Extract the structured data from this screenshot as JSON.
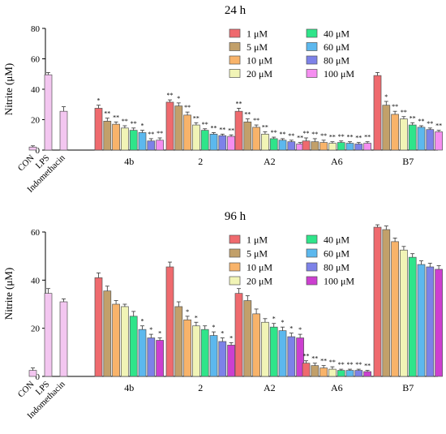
{
  "colors": {
    "CON": "#f3c6f0",
    "LPS": "#f3c6f0",
    "Indomethacin": "#f3c6f0",
    "1 μM": "#ef6a6e",
    "5 μM": "#c2a06a",
    "10 μM": "#f8b36a",
    "20 μM": "#f1f4b6",
    "40 μM": "#2fe58a",
    "60 μM": "#5cb8ee",
    "80 μM": "#7d82e8",
    "100 μM_a": "#f58ef0",
    "100 μM_b": "#cc3fd0"
  },
  "chart_data": [
    {
      "type": "bar",
      "title": "24 h",
      "ylabel": "Nitrite (μM)",
      "ylim": [
        0,
        80
      ],
      "yticks": [
        "0",
        "20",
        "40",
        "60",
        "80"
      ],
      "legend": {
        "placement": "top-right",
        "entries": [
          "1 μM",
          "5 μM",
          "10 μM",
          "20 μM",
          "40 μM",
          "60 μM",
          "80 μM",
          "100 μM"
        ],
        "colorKeys": [
          "1 μM",
          "5 μM",
          "10 μM",
          "20 μM",
          "40 μM",
          "60 μM",
          "80 μM",
          "100 μM_a"
        ]
      },
      "controls": [
        {
          "label": "CON",
          "value": 2,
          "err": 0.8,
          "colorKey": "CON"
        },
        {
          "label": "LPS",
          "value": 49.5,
          "err": 1.5,
          "colorKey": "LPS"
        },
        {
          "label": "Indomethacin",
          "value": 25.5,
          "err": 3,
          "colorKey": "Indomethacin"
        }
      ],
      "categories": [
        "4b",
        "2",
        "A2",
        "A6",
        "B7"
      ],
      "series": [
        {
          "name": "1 μM",
          "values": [
            27.5,
            31.5,
            25.5,
            6,
            49
          ],
          "err": [
            2,
            1.5,
            2,
            2,
            2
          ],
          "sig": [
            "*",
            "**",
            "**",
            "**",
            ""
          ]
        },
        {
          "name": "5 μM",
          "values": [
            19,
            29,
            18.5,
            5.5,
            29.5
          ],
          "err": [
            2,
            2,
            2,
            2,
            2.5
          ],
          "sig": [
            "**",
            "*",
            "**",
            "**",
            "*"
          ]
        },
        {
          "name": "10 μM",
          "values": [
            17,
            23,
            15,
            5,
            23.5
          ],
          "err": [
            1.5,
            2,
            1.5,
            1.5,
            2
          ],
          "sig": [
            "**",
            "**",
            "**",
            "**",
            "**"
          ]
        },
        {
          "name": "20 μM",
          "values": [
            14.5,
            16.5,
            10.5,
            4.5,
            20.5
          ],
          "err": [
            1.5,
            1.5,
            1.5,
            1,
            1.5
          ],
          "sig": [
            "**",
            "**",
            "**",
            "**",
            "**"
          ]
        },
        {
          "name": "40 μM",
          "values": [
            13,
            13,
            7.5,
            5,
            16.5
          ],
          "err": [
            1.5,
            1,
            1,
            1,
            1.5
          ],
          "sig": [
            "**",
            "**",
            "**",
            "**",
            "**"
          ]
        },
        {
          "name": "60 μM",
          "values": [
            11.5,
            10.5,
            6.5,
            4.5,
            15
          ],
          "err": [
            1.5,
            1,
            1,
            1,
            1
          ],
          "sig": [
            "*",
            "**",
            "**",
            "**",
            "**"
          ]
        },
        {
          "name": "80 μM",
          "values": [
            6,
            9.5,
            5.5,
            4,
            13.5
          ],
          "err": [
            1.5,
            1,
            1,
            1,
            1
          ],
          "sig": [
            "**",
            "**",
            "**",
            "**",
            "**"
          ]
        },
        {
          "name": "100 μM",
          "values": [
            6.5,
            9,
            4,
            4.5,
            12
          ],
          "err": [
            1.5,
            1,
            1,
            1,
            1
          ],
          "sig": [
            "**",
            "**",
            "**",
            "**",
            "**"
          ]
        }
      ]
    },
    {
      "type": "bar",
      "title": "96 h",
      "ylabel": "Nitrite (μM)",
      "ylim": [
        0,
        60
      ],
      "yticks": [
        "0",
        "20",
        "40",
        "60"
      ],
      "legend": {
        "placement": "top-right",
        "entries": [
          "1 μM",
          "5 μM",
          "10 μM",
          "20 μM",
          "40 μM",
          "60 μM",
          "80 μM",
          "100 μM"
        ],
        "colorKeys": [
          "1 μM",
          "5 μM",
          "10 μM",
          "20 μM",
          "40 μM",
          "60 μM",
          "80 μM",
          "100 μM_b"
        ]
      },
      "controls": [
        {
          "label": "CON",
          "value": 2.5,
          "err": 1,
          "colorKey": "CON"
        },
        {
          "label": "LPS",
          "value": 34.5,
          "err": 2,
          "colorKey": "LPS"
        },
        {
          "label": "Indomethacin",
          "value": 31,
          "err": 1.2,
          "colorKey": "Indomethacin"
        }
      ],
      "categories": [
        "4b",
        "2",
        "A2",
        "A6",
        "B7"
      ],
      "series": [
        {
          "name": "1 μM",
          "values": [
            41,
            45.5,
            34.5,
            5.5,
            62
          ],
          "err": [
            2,
            2,
            2,
            1,
            1
          ],
          "sig": [
            "",
            "",
            "",
            "**",
            ""
          ]
        },
        {
          "name": "5 μM",
          "values": [
            35.5,
            29,
            31.5,
            4.5,
            61
          ],
          "err": [
            2,
            2,
            2,
            1,
            1.5
          ],
          "sig": [
            "",
            "",
            "",
            "**",
            ""
          ]
        },
        {
          "name": "10 μM",
          "values": [
            30,
            23.5,
            26,
            3.5,
            56
          ],
          "err": [
            1.5,
            1.5,
            2,
            1,
            1.5
          ],
          "sig": [
            "",
            "*",
            "",
            "**",
            ""
          ]
        },
        {
          "name": "20 μM",
          "values": [
            29,
            21,
            22.5,
            3,
            52.5
          ],
          "err": [
            1,
            1.5,
            1.5,
            1,
            1.5
          ],
          "sig": [
            "",
            "*",
            "",
            "**",
            ""
          ]
        },
        {
          "name": "40 μM",
          "values": [
            25,
            19.5,
            20.5,
            2.5,
            49.5
          ],
          "err": [
            2,
            1.5,
            1.5,
            0.5,
            1.5
          ],
          "sig": [
            "",
            "",
            "*",
            "**",
            ""
          ]
        },
        {
          "name": "60 μM",
          "values": [
            19.5,
            17,
            19,
            2.5,
            46.5
          ],
          "err": [
            1.5,
            1.5,
            1.5,
            0.5,
            1.5
          ],
          "sig": [
            "*",
            "*",
            "*",
            "**",
            ""
          ]
        },
        {
          "name": "80 μM",
          "values": [
            16,
            14.5,
            16.5,
            2.5,
            45.5
          ],
          "err": [
            1.5,
            1.5,
            1.5,
            0.5,
            1.5
          ],
          "sig": [
            "*",
            "*",
            "*",
            "**",
            ""
          ]
        },
        {
          "name": "100 μM",
          "values": [
            15,
            13,
            16,
            2,
            44.5
          ],
          "err": [
            1,
            1,
            1.5,
            0.5,
            1.5
          ],
          "sig": [
            "*",
            "*",
            "*",
            "**",
            ""
          ]
        }
      ]
    }
  ]
}
